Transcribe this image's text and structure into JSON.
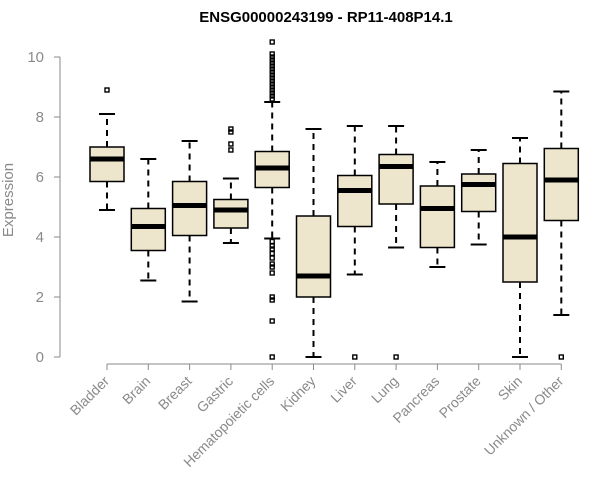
{
  "chart_data": {
    "type": "box",
    "title": "ENSG00000243199 - RP11-408P14.1",
    "xlabel": "",
    "ylabel": "Expression",
    "ylim": [
      0,
      10.5
    ],
    "yticks": [
      0,
      2,
      4,
      6,
      8,
      10
    ],
    "categories": [
      "Bladder",
      "Brain",
      "Breast",
      "Gastric",
      "Hematopoietic cells",
      "Kidney",
      "Liver",
      "Lung",
      "Pancreas",
      "Prostate",
      "Skin",
      "Unknown / Other"
    ],
    "boxes": [
      {
        "label": "Bladder",
        "whisker_low": 4.9,
        "q1": 5.85,
        "median": 6.6,
        "q3": 7.0,
        "whisker_high": 8.1,
        "outliers": [
          8.9
        ]
      },
      {
        "label": "Brain",
        "whisker_low": 2.55,
        "q1": 3.55,
        "median": 4.35,
        "q3": 4.95,
        "whisker_high": 6.6,
        "outliers": []
      },
      {
        "label": "Breast",
        "whisker_low": 1.85,
        "q1": 4.05,
        "median": 5.05,
        "q3": 5.85,
        "whisker_high": 7.2,
        "outliers": []
      },
      {
        "label": "Gastric",
        "whisker_low": 3.8,
        "q1": 4.3,
        "median": 4.9,
        "q3": 5.25,
        "whisker_high": 5.95,
        "outliers": [
          6.9,
          7.1,
          7.5,
          7.6
        ]
      },
      {
        "label": "Hematopoietic cells",
        "whisker_low": 3.95,
        "q1": 5.65,
        "median": 6.3,
        "q3": 6.85,
        "whisker_high": 8.5,
        "outliers": [
          0,
          1.2,
          1.9,
          2.0,
          2.8,
          3.0,
          3.1,
          3.3,
          3.45,
          3.6,
          3.7,
          3.85,
          8.6,
          8.7,
          8.8,
          8.9,
          9.0,
          9.1,
          9.2,
          9.3,
          9.4,
          9.5,
          9.6,
          9.7,
          9.8,
          9.9,
          10.0,
          10.1,
          10.5
        ]
      },
      {
        "label": "Kidney",
        "whisker_low": 0,
        "q1": 2.0,
        "median": 2.7,
        "q3": 4.7,
        "whisker_high": 7.6,
        "outliers": []
      },
      {
        "label": "Liver",
        "whisker_low": 2.75,
        "q1": 4.35,
        "median": 5.55,
        "q3": 6.05,
        "whisker_high": 7.7,
        "outliers": [
          0
        ]
      },
      {
        "label": "Lung",
        "whisker_low": 3.65,
        "q1": 5.1,
        "median": 6.35,
        "q3": 6.75,
        "whisker_high": 7.7,
        "outliers": [
          0
        ]
      },
      {
        "label": "Pancreas",
        "whisker_low": 3.0,
        "q1": 3.65,
        "median": 4.95,
        "q3": 5.7,
        "whisker_high": 6.5,
        "outliers": []
      },
      {
        "label": "Prostate",
        "whisker_low": 3.75,
        "q1": 4.85,
        "median": 5.75,
        "q3": 6.1,
        "whisker_high": 6.9,
        "outliers": []
      },
      {
        "label": "Skin",
        "whisker_low": 0,
        "q1": 2.5,
        "median": 4.0,
        "q3": 6.45,
        "whisker_high": 7.3,
        "outliers": []
      },
      {
        "label": "Unknown / Other",
        "whisker_low": 1.4,
        "q1": 4.55,
        "median": 5.9,
        "q3": 6.95,
        "whisker_high": 8.85,
        "outliers": [
          0
        ]
      }
    ],
    "colors": {
      "box_fill": "#ede5cc",
      "stroke": "#000000",
      "axis": "#8a8a8a"
    }
  }
}
